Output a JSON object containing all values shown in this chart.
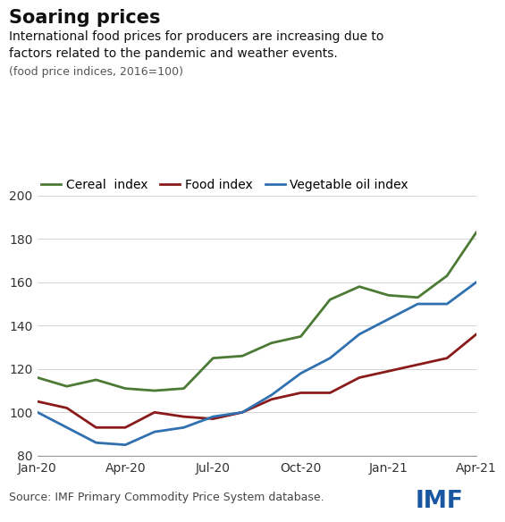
{
  "title": "Soaring prices",
  "subtitle": "International food prices for producers are increasing due to\nfactors related to the pandemic and weather events.",
  "subtitle2": "(food price indices, 2016=100)",
  "source": "Source: IMF Primary Commodity Price System database.",
  "imf_label": "IMF",
  "x_labels": [
    "Jan-20",
    "Apr-20",
    "Jul-20",
    "Oct-20",
    "Jan-21",
    "Apr-21"
  ],
  "ylim": [
    80,
    200
  ],
  "yticks": [
    80,
    100,
    120,
    140,
    160,
    180,
    200
  ],
  "cereal_color": "#4c7a34",
  "food_color": "#8b1a1a",
  "veg_oil_color": "#3070b0",
  "cereal_label": "Cereal  index",
  "food_label": "Food index",
  "veg_oil_label": "Vegetable oil index",
  "cereal_data": [
    116,
    112,
    115,
    111,
    110,
    111,
    125,
    126,
    132,
    135,
    152,
    158,
    154,
    153,
    163,
    183
  ],
  "food_data": [
    105,
    102,
    93,
    93,
    100,
    98,
    97,
    100,
    106,
    109,
    109,
    116,
    119,
    122,
    125,
    136
  ],
  "veg_oil_data": [
    100,
    93,
    86,
    85,
    91,
    93,
    98,
    100,
    108,
    118,
    125,
    136,
    143,
    150,
    150,
    160
  ],
  "n_points": 16,
  "background_color": "#ffffff",
  "line_width": 2.0,
  "title_fontsize": 15,
  "subtitle_fontsize": 10,
  "subtitle2_fontsize": 9,
  "legend_fontsize": 10,
  "tick_fontsize": 10,
  "source_fontsize": 9
}
